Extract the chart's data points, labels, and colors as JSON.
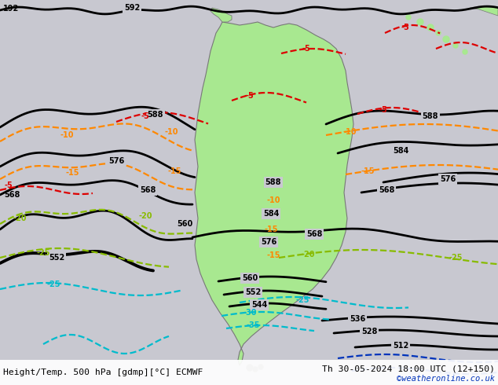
{
  "title_left": "Height/Temp. 500 hPa [gdmp][°C] ECMWF",
  "title_right": "Th 30-05-2024 18:00 UTC (12+150)",
  "watermark": "©weatheronline.co.uk",
  "bg_color": "#c8c8d0",
  "land_color": "#a8e890",
  "border_color": "#787878",
  "c_black": "#000000",
  "c_red": "#dd0000",
  "c_orange": "#ff8800",
  "c_ygreen": "#88bb00",
  "c_cyan": "#00bbcc",
  "c_blue": "#0033bb",
  "fig_width": 6.34,
  "fig_height": 4.9,
  "dpi": 100
}
